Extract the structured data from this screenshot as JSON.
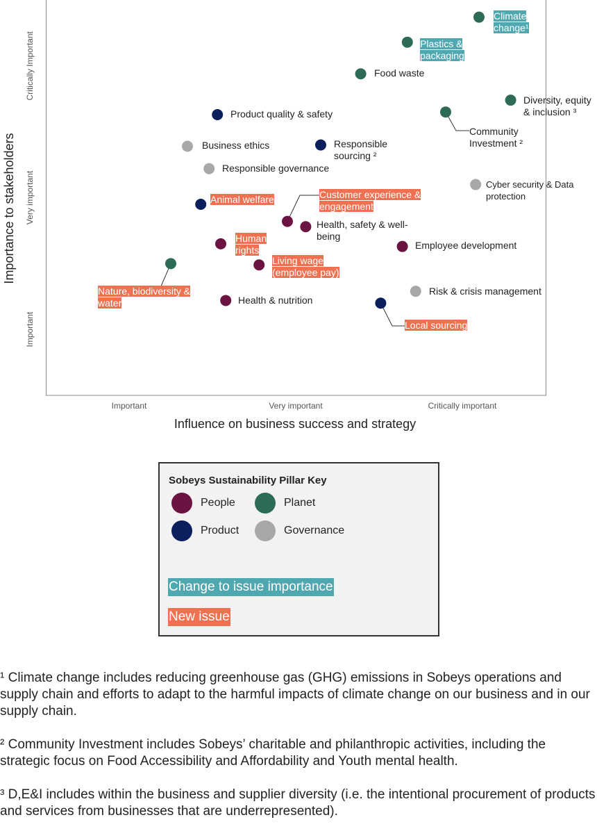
{
  "chart_data": {
    "type": "scatter",
    "xlabel": "Influence on business success and strategy",
    "ylabel": "Importance to stakeholders",
    "xlim": [
      0.5,
      3.5
    ],
    "ylim": [
      0.5,
      3.5
    ],
    "xticks": [
      {
        "value": 1,
        "label": "Important"
      },
      {
        "value": 2,
        "label": "Very important"
      },
      {
        "value": 3,
        "label": "Critically important"
      }
    ],
    "yticks": [
      {
        "value": 1,
        "label": "Important"
      },
      {
        "value": 2,
        "label": "Very important"
      },
      {
        "value": 3,
        "label": "Critically Important"
      }
    ],
    "series": [
      {
        "name": "People",
        "color": "#6b1341",
        "x": [
          1.95,
          2.06,
          1.55,
          2.64,
          1.78,
          1.58
        ],
        "values": [
          1.82,
          1.78,
          1.65,
          1.63,
          1.49,
          1.22
        ],
        "labels": [
          "Customer experience & engagement",
          "Health, safety & well-being",
          "Human rights",
          "Employee development",
          "Living wage (employee pay)",
          "Health & nutrition"
        ],
        "label_colors": [
          "#f07152",
          null,
          "#f07152",
          null,
          "#f07152",
          null
        ]
      },
      {
        "name": "Planet",
        "color": "#2e6b55",
        "x": [
          3.1,
          2.67,
          2.39,
          3.29,
          2.9,
          1.25
        ],
        "values": [
          3.37,
          3.18,
          2.94,
          2.74,
          2.65,
          1.5
        ],
        "labels": [
          "Climate change¹",
          "Plastics & packaging",
          "Food waste",
          "Diversity, equity & inclusion ³",
          "Community Investment ²",
          "Nature, biodiversity & water"
        ],
        "label_colors": [
          "#4fa8b0",
          "#4fa8b0",
          null,
          null,
          null,
          "#f07152"
        ]
      },
      {
        "name": "Product",
        "color": "#0b1f5c",
        "x": [
          1.53,
          2.15,
          1.43,
          2.51
        ],
        "values": [
          2.63,
          2.4,
          1.95,
          1.2
        ],
        "labels": [
          "Product quality & safety",
          "Responsible sourcing ²",
          "Animal welfare",
          "Local sourcing"
        ],
        "label_colors": [
          null,
          null,
          "#f07152",
          "#f07152"
        ]
      },
      {
        "name": "Governance",
        "color": "#a8a8a8",
        "x": [
          1.35,
          1.48,
          3.08,
          2.72
        ],
        "values": [
          2.39,
          2.22,
          2.1,
          1.29
        ],
        "labels": [
          "Business ethics",
          "Responsible governance",
          "Cyber security & Data protection",
          "Risk & crisis management"
        ],
        "label_colors": [
          null,
          null,
          null,
          null
        ]
      }
    ],
    "legend_title": "Sobeys Sustainability Pillar Key",
    "highlight_key": [
      {
        "name": "Change to issue importance",
        "color": "#4fa8b0"
      },
      {
        "name": "New issue",
        "color": "#f07152"
      }
    ]
  },
  "footnotes": [
    "¹ Climate change includes reducing greenhouse gas (GHG) emissions in Sobeys operations and supply chain and efforts to adapt to the harmful impacts of climate change on our business and in our supply chain.",
    "² Community Investment includes Sobeys’ charitable and philanthropic activities, including the strategic focus on Food Accessibility and Affordability and Youth mental health.",
    "³ D,E&I includes within the business and supplier diversity (i.e. the intentional procurement of products and services from businesses that are underrepresented)."
  ]
}
